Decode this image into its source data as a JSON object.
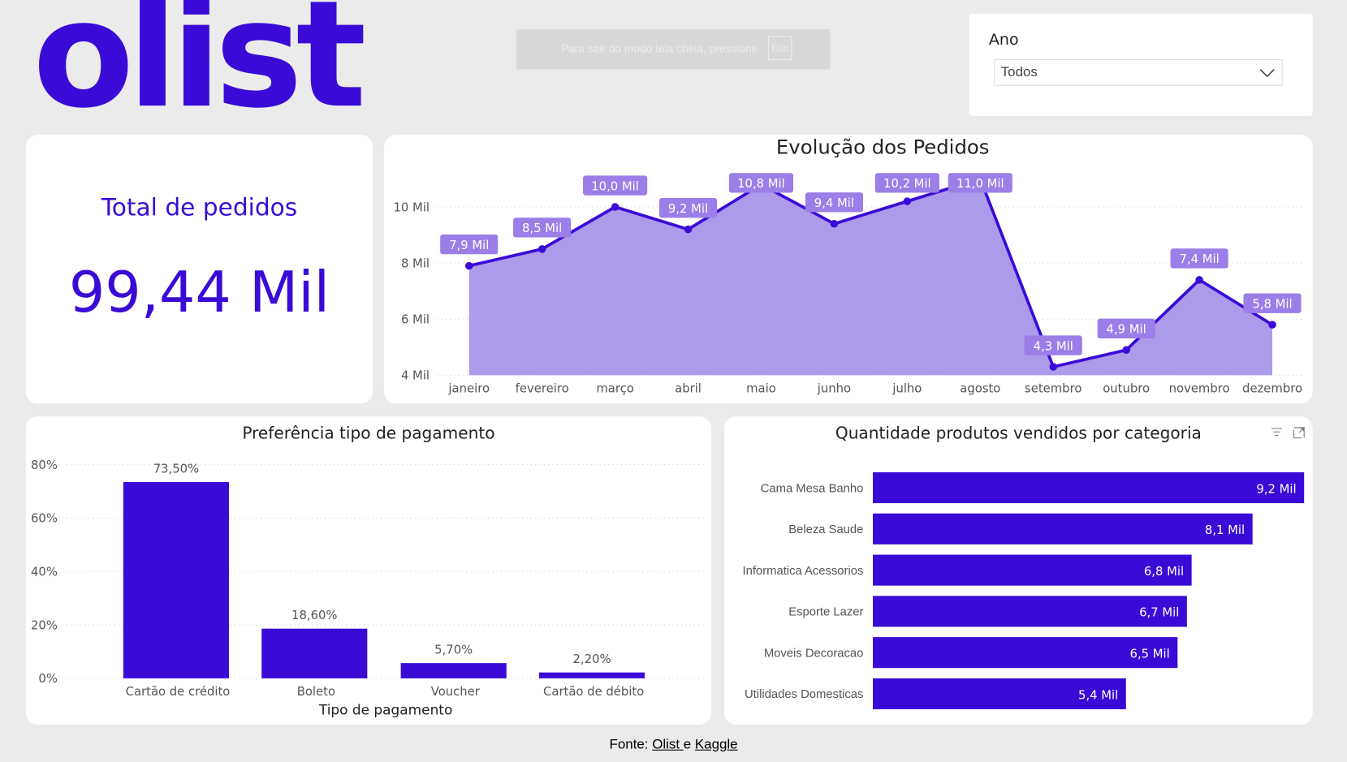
{
  "logo": "olist",
  "toast": {
    "text": "Para sair do modo tela cheia, pressione",
    "key": "Esc"
  },
  "filter": {
    "label": "Ano",
    "value": "Todos"
  },
  "kpi": {
    "title": "Total de pedidos",
    "value": "99,44 Mil"
  },
  "colors": {
    "primary": "#3a0bd6",
    "area": "#ac9aeb",
    "label_bg": "#9b7ee8"
  },
  "chart_data": [
    {
      "type": "line",
      "title": "Evolução dos Pedidos",
      "categories": [
        "janeiro",
        "fevereiro",
        "março",
        "abril",
        "maio",
        "junho",
        "julho",
        "agosto",
        "setembro",
        "outubro",
        "novembro",
        "dezembro"
      ],
      "values": [
        7.9,
        8.5,
        10.0,
        9.2,
        10.8,
        9.4,
        10.2,
        11.0,
        4.3,
        4.9,
        7.4,
        5.8
      ],
      "labels": [
        "7,9 Mil",
        "8,5 Mil",
        "10,0 Mil",
        "9,2 Mil",
        "10,8 Mil",
        "9,4 Mil",
        "10,2 Mil",
        "11,0 Mil",
        "4,3 Mil",
        "4,9 Mil",
        "7,4 Mil",
        "5,8 Mil"
      ],
      "yticks": [
        4,
        6,
        8,
        10
      ],
      "ytick_labels": [
        "4 Mil",
        "6 Mil",
        "8 Mil",
        "10 Mil"
      ],
      "ylim": [
        4,
        11.3
      ],
      "unit": "Mil"
    },
    {
      "type": "bar",
      "title": "Preferência tipo de pagamento",
      "xlabel": "Tipo de pagamento",
      "categories": [
        "Cartão de crédito",
        "Boleto",
        "Voucher",
        "Cartão de débito"
      ],
      "values": [
        73.5,
        18.6,
        5.7,
        2.2
      ],
      "labels": [
        "73,50%",
        "18,60%",
        "5,70%",
        "2,20%"
      ],
      "yticks": [
        0,
        20,
        40,
        60,
        80
      ],
      "ytick_labels": [
        "0%",
        "20%",
        "40%",
        "60%",
        "80%"
      ],
      "ylim": [
        0,
        80
      ]
    },
    {
      "type": "bar",
      "orientation": "horizontal",
      "title": "Quantidade produtos vendidos por categoria",
      "categories": [
        "Cama Mesa Banho",
        "Beleza Saude",
        "Informatica Acessorios",
        "Esporte Lazer",
        "Moveis Decoracao",
        "Utilidades Domesticas"
      ],
      "values": [
        9.2,
        8.1,
        6.8,
        6.7,
        6.5,
        5.4
      ],
      "labels": [
        "9,2 Mil",
        "8,1 Mil",
        "6,8 Mil",
        "6,7 Mil",
        "6,5 Mil",
        "5,4 Mil"
      ],
      "xlim": [
        0,
        9.2
      ]
    }
  ],
  "footer": {
    "prefix": "Fonte: ",
    "link1": "Olist ",
    "mid": "e ",
    "link2": "Kaggle"
  }
}
